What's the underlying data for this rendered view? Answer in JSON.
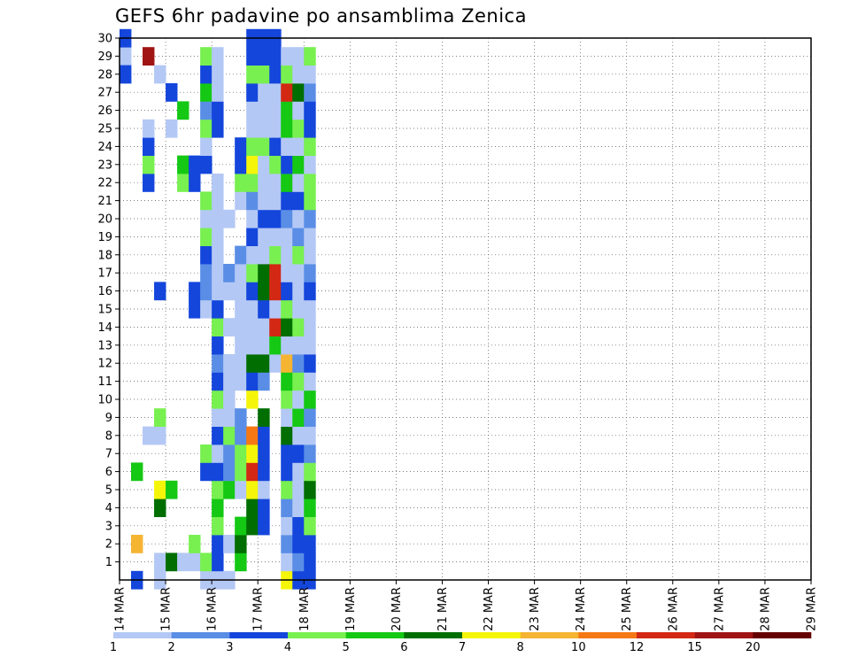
{
  "chart_data": {
    "type": "heatmap",
    "title": "GEFS 6hr padavine po ansamblima Zenica",
    "xlabel": "",
    "ylabel": "",
    "x_tick_labels": [
      "14 MAR",
      "15 MAR",
      "16 MAR",
      "17 MAR",
      "18 MAR",
      "19 MAR",
      "20 MAR",
      "21 MAR",
      "22 MAR",
      "23 MAR",
      "24 MAR",
      "25 MAR",
      "26 MAR",
      "27 MAR",
      "28 MAR",
      "29 MAR"
    ],
    "y_tick_labels": [
      "1",
      "2",
      "3",
      "4",
      "5",
      "6",
      "7",
      "8",
      "9",
      "10",
      "11",
      "12",
      "13",
      "14",
      "15",
      "16",
      "17",
      "18",
      "19",
      "20",
      "21",
      "22",
      "23",
      "24",
      "25",
      "26",
      "27",
      "28",
      "29",
      "30"
    ],
    "y_range": [
      0,
      30
    ],
    "x_range_steps": [
      0,
      60
    ],
    "steps_per_day": 4,
    "grid": "dotted",
    "colorbar": {
      "ticks": [
        "1",
        "2",
        "3",
        "4",
        "5",
        "6",
        "7",
        "8",
        "10",
        "12",
        "15",
        "20"
      ],
      "colors": [
        "#b4c8f5",
        "#5a8ee6",
        "#1446dc",
        "#78f050",
        "#14c814",
        "#006e00",
        "#f5f50a",
        "#f5b432",
        "#f57814",
        "#d22814",
        "#a01414",
        "#640000"
      ]
    },
    "cells": [
      [
        29,
        0,
        0
      ],
      [
        30,
        0,
        2
      ],
      [
        28,
        0,
        2
      ],
      [
        2,
        1,
        7
      ],
      [
        0,
        1,
        2
      ],
      [
        6,
        1,
        4
      ],
      [
        8,
        2,
        0
      ],
      [
        29,
        2,
        10
      ],
      [
        22,
        2,
        2
      ],
      [
        23,
        2,
        3
      ],
      [
        24,
        2,
        2
      ],
      [
        25,
        2,
        0
      ],
      [
        0,
        3,
        0
      ],
      [
        1,
        3,
        0
      ],
      [
        8,
        3,
        0
      ],
      [
        9,
        3,
        3
      ],
      [
        16,
        3,
        2
      ],
      [
        28,
        3,
        0
      ],
      [
        4,
        3,
        5
      ],
      [
        5,
        3,
        6
      ],
      [
        5,
        4,
        4
      ],
      [
        1,
        4,
        5
      ],
      [
        27,
        4,
        2
      ],
      [
        25,
        4,
        0
      ],
      [
        1,
        5,
        0
      ],
      [
        22,
        5,
        3
      ],
      [
        23,
        5,
        4
      ],
      [
        26,
        5,
        4
      ],
      [
        1,
        6,
        0
      ],
      [
        2,
        6,
        3
      ],
      [
        15,
        6,
        2
      ],
      [
        16,
        6,
        2
      ],
      [
        22,
        6,
        2
      ],
      [
        23,
        6,
        2
      ],
      [
        0,
        7,
        0
      ],
      [
        1,
        7,
        3
      ],
      [
        6,
        7,
        2
      ],
      [
        7,
        7,
        3
      ],
      [
        15,
        7,
        0
      ],
      [
        16,
        7,
        1
      ],
      [
        17,
        7,
        1
      ],
      [
        18,
        7,
        2
      ],
      [
        19,
        7,
        3
      ],
      [
        20,
        7,
        0
      ],
      [
        21,
        7,
        3
      ],
      [
        23,
        7,
        2
      ],
      [
        24,
        7,
        0
      ],
      [
        25,
        7,
        3
      ],
      [
        26,
        7,
        1
      ],
      [
        27,
        7,
        4
      ],
      [
        28,
        7,
        2
      ],
      [
        29,
        7,
        3
      ],
      [
        0,
        8,
        0
      ],
      [
        1,
        8,
        2
      ],
      [
        2,
        8,
        2
      ],
      [
        3,
        8,
        3
      ],
      [
        4,
        8,
        4
      ],
      [
        5,
        8,
        3
      ],
      [
        6,
        8,
        2
      ],
      [
        7,
        8,
        0
      ],
      [
        8,
        8,
        2
      ],
      [
        9,
        8,
        0
      ],
      [
        10,
        8,
        3
      ],
      [
        11,
        8,
        2
      ],
      [
        12,
        8,
        1
      ],
      [
        13,
        8,
        2
      ],
      [
        14,
        8,
        3
      ],
      [
        15,
        8,
        2
      ],
      [
        16,
        8,
        0
      ],
      [
        17,
        8,
        0
      ],
      [
        18,
        8,
        0
      ],
      [
        19,
        8,
        0
      ],
      [
        20,
        8,
        0
      ],
      [
        21,
        8,
        0
      ],
      [
        22,
        8,
        0
      ],
      [
        25,
        8,
        2
      ],
      [
        26,
        8,
        2
      ],
      [
        27,
        8,
        0
      ],
      [
        28,
        8,
        0
      ],
      [
        29,
        8,
        0
      ],
      [
        0,
        9,
        0
      ],
      [
        2,
        9,
        0
      ],
      [
        5,
        9,
        4
      ],
      [
        6,
        9,
        1
      ],
      [
        7,
        9,
        1
      ],
      [
        8,
        9,
        3
      ],
      [
        9,
        9,
        0
      ],
      [
        10,
        9,
        0
      ],
      [
        11,
        9,
        0
      ],
      [
        12,
        9,
        0
      ],
      [
        14,
        9,
        0
      ],
      [
        16,
        9,
        0
      ],
      [
        17,
        9,
        1
      ],
      [
        20,
        9,
        0
      ],
      [
        1,
        10,
        4
      ],
      [
        2,
        10,
        5
      ],
      [
        3,
        10,
        4
      ],
      [
        5,
        10,
        0
      ],
      [
        6,
        10,
        3
      ],
      [
        7,
        10,
        3
      ],
      [
        8,
        10,
        1
      ],
      [
        9,
        10,
        1
      ],
      [
        11,
        10,
        0
      ],
      [
        12,
        10,
        0
      ],
      [
        13,
        10,
        0
      ],
      [
        14,
        10,
        0
      ],
      [
        15,
        10,
        0
      ],
      [
        16,
        10,
        0
      ],
      [
        17,
        10,
        0
      ],
      [
        18,
        10,
        1
      ],
      [
        21,
        10,
        0
      ],
      [
        22,
        10,
        3
      ],
      [
        23,
        10,
        2
      ],
      [
        24,
        10,
        2
      ],
      [
        3,
        11,
        5
      ],
      [
        4,
        11,
        5
      ],
      [
        5,
        11,
        6
      ],
      [
        6,
        11,
        9
      ],
      [
        7,
        11,
        6
      ],
      [
        8,
        11,
        8
      ],
      [
        10,
        11,
        6
      ],
      [
        11,
        11,
        2
      ],
      [
        12,
        11,
        5
      ],
      [
        13,
        11,
        0
      ],
      [
        14,
        11,
        0
      ],
      [
        15,
        11,
        0
      ],
      [
        16,
        11,
        2
      ],
      [
        17,
        11,
        3
      ],
      [
        18,
        11,
        0
      ],
      [
        19,
        11,
        2
      ],
      [
        20,
        11,
        0
      ],
      [
        21,
        11,
        1
      ],
      [
        22,
        11,
        3
      ],
      [
        23,
        11,
        6
      ],
      [
        24,
        11,
        3
      ],
      [
        25,
        11,
        0
      ],
      [
        26,
        11,
        0
      ],
      [
        27,
        11,
        2
      ],
      [
        28,
        11,
        3
      ],
      [
        29,
        11,
        2
      ],
      [
        30,
        11,
        2
      ],
      [
        3,
        12,
        2
      ],
      [
        4,
        12,
        2
      ],
      [
        5,
        12,
        0
      ],
      [
        6,
        12,
        2
      ],
      [
        7,
        12,
        2
      ],
      [
        8,
        12,
        2
      ],
      [
        9,
        12,
        5
      ],
      [
        11,
        12,
        1
      ],
      [
        12,
        12,
        5
      ],
      [
        13,
        12,
        0
      ],
      [
        14,
        12,
        0
      ],
      [
        15,
        12,
        2
      ],
      [
        16,
        12,
        5
      ],
      [
        17,
        12,
        5
      ],
      [
        18,
        12,
        0
      ],
      [
        19,
        12,
        0
      ],
      [
        20,
        12,
        2
      ],
      [
        21,
        12,
        0
      ],
      [
        22,
        12,
        0
      ],
      [
        23,
        12,
        0
      ],
      [
        24,
        12,
        3
      ],
      [
        25,
        12,
        0
      ],
      [
        26,
        12,
        0
      ],
      [
        27,
        12,
        0
      ],
      [
        28,
        12,
        3
      ],
      [
        29,
        12,
        2
      ],
      [
        30,
        12,
        2
      ],
      [
        12,
        13,
        0
      ],
      [
        13,
        13,
        4
      ],
      [
        14,
        13,
        9
      ],
      [
        15,
        13,
        0
      ],
      [
        16,
        13,
        9
      ],
      [
        17,
        13,
        9
      ],
      [
        18,
        13,
        3
      ],
      [
        19,
        13,
        0
      ],
      [
        20,
        13,
        2
      ],
      [
        21,
        13,
        0
      ],
      [
        22,
        13,
        0
      ],
      [
        23,
        13,
        3
      ],
      [
        24,
        13,
        2
      ],
      [
        25,
        13,
        0
      ],
      [
        26,
        13,
        0
      ],
      [
        27,
        13,
        0
      ],
      [
        28,
        13,
        2
      ],
      [
        29,
        13,
        2
      ],
      [
        30,
        13,
        2
      ],
      [
        0,
        14,
        6
      ],
      [
        1,
        14,
        0
      ],
      [
        2,
        14,
        1
      ],
      [
        3,
        14,
        0
      ],
      [
        4,
        14,
        1
      ],
      [
        5,
        14,
        3
      ],
      [
        6,
        14,
        2
      ],
      [
        7,
        14,
        2
      ],
      [
        8,
        14,
        5
      ],
      [
        9,
        14,
        0
      ],
      [
        10,
        14,
        3
      ],
      [
        11,
        14,
        4
      ],
      [
        12,
        14,
        7
      ],
      [
        13,
        14,
        0
      ],
      [
        14,
        14,
        5
      ],
      [
        15,
        14,
        3
      ],
      [
        16,
        14,
        2
      ],
      [
        17,
        14,
        0
      ],
      [
        18,
        14,
        0
      ],
      [
        19,
        14,
        0
      ],
      [
        20,
        14,
        1
      ],
      [
        21,
        14,
        2
      ],
      [
        22,
        14,
        4
      ],
      [
        23,
        14,
        2
      ],
      [
        24,
        14,
        0
      ],
      [
        25,
        14,
        4
      ],
      [
        26,
        14,
        4
      ],
      [
        27,
        14,
        9
      ],
      [
        28,
        14,
        3
      ],
      [
        29,
        14,
        0
      ],
      [
        0,
        15,
        2
      ],
      [
        1,
        15,
        1
      ],
      [
        2,
        15,
        2
      ],
      [
        3,
        15,
        2
      ],
      [
        4,
        15,
        0
      ],
      [
        5,
        15,
        0
      ],
      [
        6,
        15,
        0
      ],
      [
        7,
        15,
        2
      ],
      [
        8,
        15,
        0
      ],
      [
        9,
        15,
        4
      ],
      [
        10,
        15,
        0
      ],
      [
        11,
        15,
        3
      ],
      [
        12,
        15,
        1
      ],
      [
        13,
        15,
        0
      ],
      [
        14,
        15,
        3
      ],
      [
        15,
        15,
        0
      ],
      [
        16,
        15,
        0
      ],
      [
        17,
        15,
        0
      ],
      [
        18,
        15,
        3
      ],
      [
        19,
        15,
        1
      ],
      [
        20,
        15,
        0
      ],
      [
        21,
        15,
        2
      ],
      [
        22,
        15,
        0
      ],
      [
        23,
        15,
        4
      ],
      [
        24,
        15,
        0
      ],
      [
        25,
        15,
        3
      ],
      [
        26,
        15,
        0
      ],
      [
        27,
        15,
        5
      ],
      [
        28,
        15,
        0
      ],
      [
        29,
        15,
        0
      ],
      [
        0,
        16,
        2
      ],
      [
        1,
        16,
        2
      ],
      [
        2,
        16,
        2
      ],
      [
        3,
        16,
        3
      ],
      [
        4,
        16,
        4
      ],
      [
        5,
        16,
        5
      ],
      [
        6,
        16,
        3
      ],
      [
        7,
        16,
        1
      ],
      [
        8,
        16,
        0
      ],
      [
        9,
        16,
        1
      ],
      [
        10,
        16,
        4
      ],
      [
        11,
        16,
        0
      ],
      [
        12,
        16,
        2
      ],
      [
        13,
        16,
        0
      ],
      [
        14,
        16,
        0
      ],
      [
        15,
        16,
        0
      ],
      [
        16,
        16,
        2
      ],
      [
        17,
        16,
        1
      ],
      [
        18,
        16,
        0
      ],
      [
        19,
        16,
        0
      ],
      [
        20,
        16,
        1
      ],
      [
        21,
        16,
        3
      ],
      [
        22,
        16,
        3
      ],
      [
        23,
        16,
        0
      ],
      [
        24,
        16,
        3
      ],
      [
        25,
        16,
        2
      ],
      [
        26,
        16,
        2
      ],
      [
        27,
        16,
        1
      ],
      [
        28,
        16,
        0
      ],
      [
        29,
        16,
        3
      ]
    ]
  }
}
